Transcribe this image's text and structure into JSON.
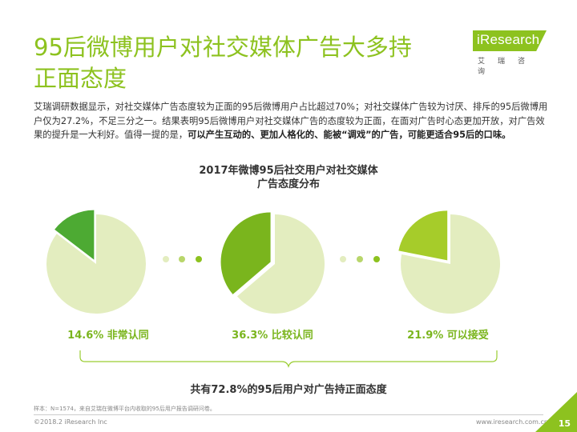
{
  "header": {
    "title_line1": "95后微博用户对社交媒体广告大多持",
    "title_line2": "正面态度",
    "logo_text": "iResearch",
    "logo_sub": "艾瑞咨询"
  },
  "intro": {
    "plain": "艾瑞调研数据显示，对社交媒体广告态度较为正面的95后微博用户占比超过70%；对社交媒体广告较为讨厌、排斥的95后微博用户仅为27.2%，不足三分之一。结果表明95后微博用户对社交媒体广告的态度较为正面，在面对广告时心态更加开放，对广告效果的提升是一大利好。值得一提的是，",
    "bold": "可以产生互动的、更加人格化的、能被“调戏”的广告，可能更适合95后的口味。"
  },
  "chart_data": {
    "type": "pie",
    "title_line1": "2017年微博95后社交用户对社交媒体",
    "title_line2": "广告态度分布",
    "slices": [
      {
        "label": "非常认同",
        "value": 14.6,
        "display": "14.6% 非常认同"
      },
      {
        "label": "比较认同",
        "value": 36.3,
        "display": "36.3% 比较认同"
      },
      {
        "label": "可以接受",
        "value": 21.9,
        "display": "21.9% 可以接受"
      }
    ],
    "summary": "共有72.8%的95后用户对广告持正面态度",
    "colors": {
      "highlight": [
        "#4daa33",
        "#7ab51d",
        "#a6cc2a"
      ],
      "rest": "#e3edbf",
      "dots": [
        "#e3edbf",
        "#b8d66b",
        "#8dc21f"
      ]
    }
  },
  "footer": {
    "note": "样本：N=1574，来自艾瑞在微博平台内收取的95后用户报告调研问卷。",
    "copyright": "©2018.2 iResearch Inc",
    "website": "www.iresearch.com.cn",
    "page": "15"
  }
}
